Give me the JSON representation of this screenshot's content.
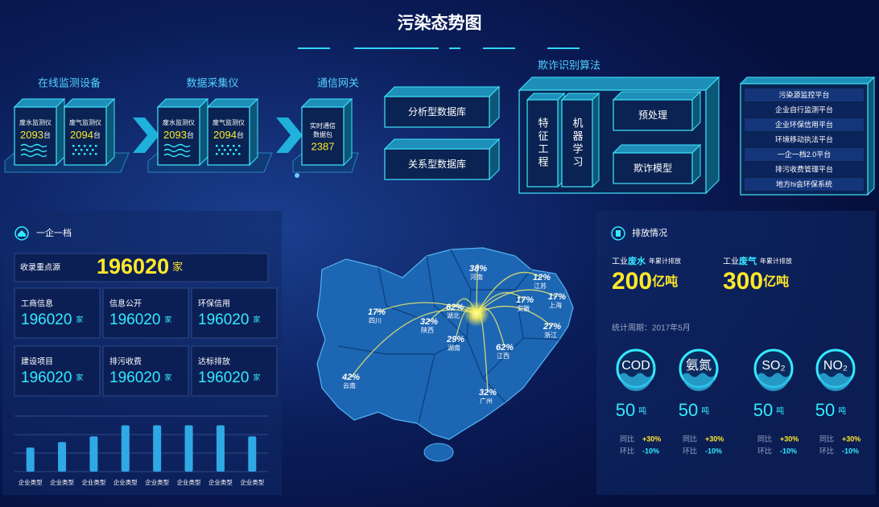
{
  "header": {
    "title": "污染态势图"
  },
  "flow": {
    "monitoring": {
      "label": "在线监测设备",
      "devices": [
        {
          "name": "废水监测仪",
          "value": "2093",
          "unit": "台"
        },
        {
          "name": "废气监测仪",
          "value": "2094",
          "unit": "台"
        }
      ]
    },
    "collection": {
      "label": "数据采集仪",
      "devices": [
        {
          "name": "废水监测仪",
          "value": "2093",
          "unit": "台"
        },
        {
          "name": "废气监测仪",
          "value": "2094",
          "unit": "台"
        }
      ]
    },
    "gateway": {
      "label": "通信网关",
      "lines": [
        "实时通信",
        "数据包"
      ],
      "value": "2387"
    },
    "databases": [
      "分析型数据库",
      "关系型数据库"
    ],
    "fraud": {
      "label": "欺诈识别算法",
      "stages": [
        "特征工程",
        "机器学习"
      ],
      "steps": [
        "预处理",
        "欺诈模型"
      ]
    },
    "platforms": [
      "污染源监控平台",
      "企业自行监测平台",
      "企业环保信用平台",
      "环境移动执法平台",
      "一企一档2.0平台",
      "排污收费管理平台",
      "地方hi会环保系统"
    ]
  },
  "enterprise": {
    "title": "一企一档",
    "key_source": {
      "label": "收录重点源",
      "value": "196020",
      "unit": "家"
    },
    "cards": [
      {
        "label": "工商信息",
        "value": "196020",
        "unit": "家"
      },
      {
        "label": "信息公开",
        "value": "196020",
        "unit": "家"
      },
      {
        "label": "环保信用",
        "value": "196020",
        "unit": "家"
      },
      {
        "label": "建设项目",
        "value": "196020",
        "unit": "家"
      },
      {
        "label": "排污收费",
        "value": "196020",
        "unit": "家"
      },
      {
        "label": "达标排放",
        "value": "196020",
        "unit": "家"
      }
    ],
    "chart": {
      "type": "bar",
      "categories": [
        "企业类型",
        "企业类型",
        "企业类型",
        "企业类型",
        "企业类型",
        "企业类型",
        "企业类型",
        "企业类型"
      ],
      "values": [
        1.3,
        1.6,
        1.9,
        2.5,
        2.5,
        2.5,
        2.5,
        1.9
      ],
      "ylim": [
        0,
        3
      ],
      "color": "#2fa8e6",
      "grid": true
    }
  },
  "map": {
    "regions": [
      {
        "name": "河南",
        "share": "38%"
      },
      {
        "name": "江苏",
        "share": "12%"
      },
      {
        "name": "上海",
        "share": "17%"
      },
      {
        "name": "安徽",
        "share": "17%"
      },
      {
        "name": "浙江",
        "share": "27%"
      },
      {
        "name": "四川",
        "share": "17%"
      },
      {
        "name": "陕西",
        "share": "32%"
      },
      {
        "name": "湖北",
        "share": "62%"
      },
      {
        "name": "湖南",
        "share": "29%"
      },
      {
        "name": "江西",
        "share": "62%"
      },
      {
        "name": "云南",
        "share": "42%"
      },
      {
        "name": "广州",
        "share": "32%"
      }
    ]
  },
  "emissions": {
    "title": "排放情况",
    "totals": [
      {
        "prefix": "工业",
        "kind": "废水",
        "note": "年累计排放",
        "value": "200",
        "unit": "亿吨"
      },
      {
        "prefix": "工业",
        "kind": "废气",
        "note": "年累计排放",
        "value": "300",
        "unit": "亿吨"
      }
    ],
    "period": "统计周期：2017年5月",
    "pollutants": [
      {
        "name": "COD",
        "value": "50",
        "unit": "吨",
        "yoy_label": "同比",
        "yoy": "+30%",
        "mom_label": "环比",
        "mom": "-10%"
      },
      {
        "name": "氨氮",
        "value": "50",
        "unit": "吨",
        "yoy_label": "同比",
        "yoy": "+30%",
        "mom_label": "环比",
        "mom": "-10%"
      },
      {
        "name": "SO₂",
        "value": "50",
        "unit": "吨",
        "yoy_label": "同比",
        "yoy": "+30%",
        "mom_label": "环比",
        "mom": "-10%"
      },
      {
        "name": "NO₂",
        "value": "50",
        "unit": "吨",
        "yoy_label": "同比",
        "yoy": "+30%",
        "mom_label": "环比",
        "mom": "-10%"
      }
    ]
  }
}
